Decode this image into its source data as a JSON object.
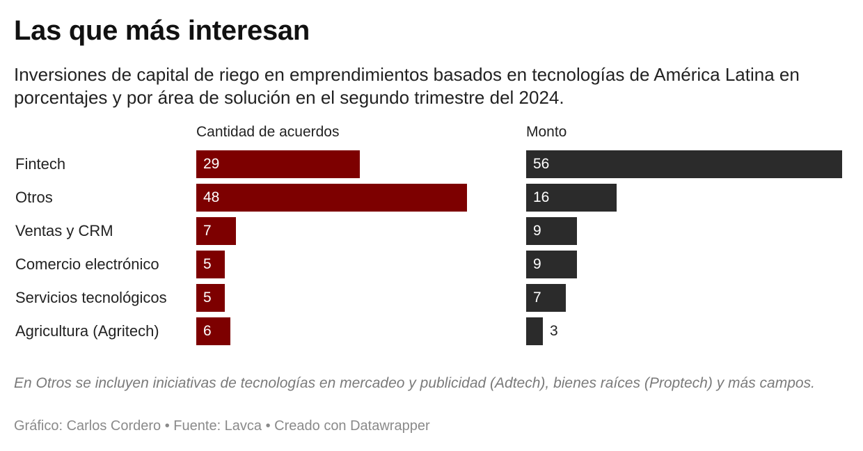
{
  "title": "Las que más interesan",
  "subtitle": "Inversiones de capital de riego en emprendimientos basados en tecnologías de América Latina en porcentajes y por área de solución en el segundo trimestre del 2024.",
  "footer": {
    "note": "En Otros se incluyen iniciativas de tecnologías en mercadeo y publicidad (Adtech), bienes raíces (Proptech) y más campos.",
    "credits": "Gráfico: Carlos Cordero • Fuente: Lavca • Creado con Datawrapper"
  },
  "colors": {
    "acuerdos": "#7d0000",
    "monto": "#2b2b2b",
    "label_inside": "#ffffff",
    "label_outside": "#222222"
  },
  "chart_data": {
    "type": "bar",
    "orientation": "horizontal",
    "title": "Las que más interesan",
    "categories": [
      "Fintech",
      "Otros",
      "Ventas y CRM",
      "Comercio electrónico",
      "Servicios tecnológicos",
      "Agricultura (Agritech)"
    ],
    "series": [
      {
        "name": "Cantidad de acuerdos",
        "values": [
          29,
          48,
          7,
          5,
          5,
          6
        ]
      },
      {
        "name": "Monto",
        "values": [
          56,
          16,
          9,
          9,
          7,
          3
        ]
      }
    ],
    "xlim": [
      0,
      56
    ]
  }
}
